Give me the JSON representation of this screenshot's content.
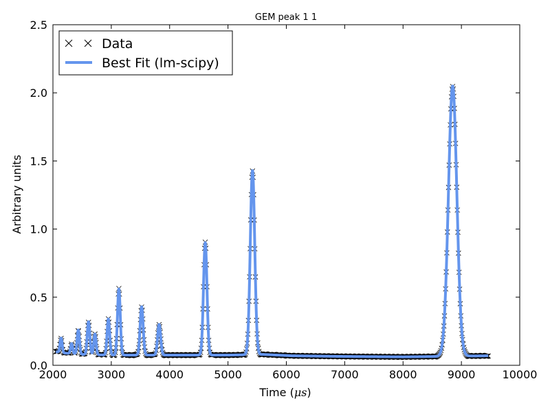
{
  "chart_data": {
    "type": "line",
    "title": "GEM peak 1 1",
    "xlabel_prefix": "Time (",
    "xlabel_unit": "μs",
    "xlabel_suffix": ")",
    "ylabel": "Arbitrary units",
    "xlim": [
      2000,
      10000
    ],
    "ylim": [
      0,
      2.5
    ],
    "xticks": [
      2000,
      3000,
      4000,
      5000,
      6000,
      7000,
      8000,
      9000,
      10000
    ],
    "xtick_labels": [
      "2000",
      "3000",
      "4000",
      "5000",
      "6000",
      "7000",
      "8000",
      "9000",
      "10000"
    ],
    "yticks": [
      0,
      0.5,
      1.0,
      1.5,
      2.0,
      2.5
    ],
    "ytick_labels": [
      "0.0",
      "0.5",
      "1.0",
      "1.5",
      "2.0",
      "2.5"
    ],
    "legend_position": "top-left",
    "grid": false,
    "data_range": [
      2050,
      9460
    ],
    "baseline": [
      [
        2050,
        0.1
      ],
      [
        2200,
        0.09
      ],
      [
        2500,
        0.08
      ],
      [
        3000,
        0.075
      ],
      [
        4000,
        0.075
      ],
      [
        5000,
        0.075
      ],
      [
        5600,
        0.08
      ],
      [
        6100,
        0.07
      ],
      [
        7000,
        0.065
      ],
      [
        8000,
        0.062
      ],
      [
        8600,
        0.065
      ],
      [
        9460,
        0.07
      ]
    ],
    "peaks": [
      {
        "center": 2140,
        "height": 0.2,
        "width": 18
      },
      {
        "center": 2320,
        "height": 0.16,
        "width": 18
      },
      {
        "center": 2435,
        "height": 0.26,
        "width": 20
      },
      {
        "center": 2610,
        "height": 0.32,
        "width": 22
      },
      {
        "center": 2720,
        "height": 0.23,
        "width": 20
      },
      {
        "center": 2950,
        "height": 0.34,
        "width": 22
      },
      {
        "center": 3130,
        "height": 0.56,
        "width": 24
      },
      {
        "center": 3520,
        "height": 0.43,
        "width": 26
      },
      {
        "center": 3820,
        "height": 0.3,
        "width": 26
      },
      {
        "center": 4610,
        "height": 0.9,
        "width": 30
      },
      {
        "center": 5420,
        "height": 1.43,
        "width": 38
      },
      {
        "center": 8850,
        "height": 2.05,
        "width": 72
      }
    ],
    "series": [
      {
        "name": "Data",
        "style": "markers",
        "marker": "x",
        "color": "#000000"
      },
      {
        "name": "Best Fit (lm-scipy)",
        "style": "line",
        "color": "#6495ED"
      }
    ]
  }
}
